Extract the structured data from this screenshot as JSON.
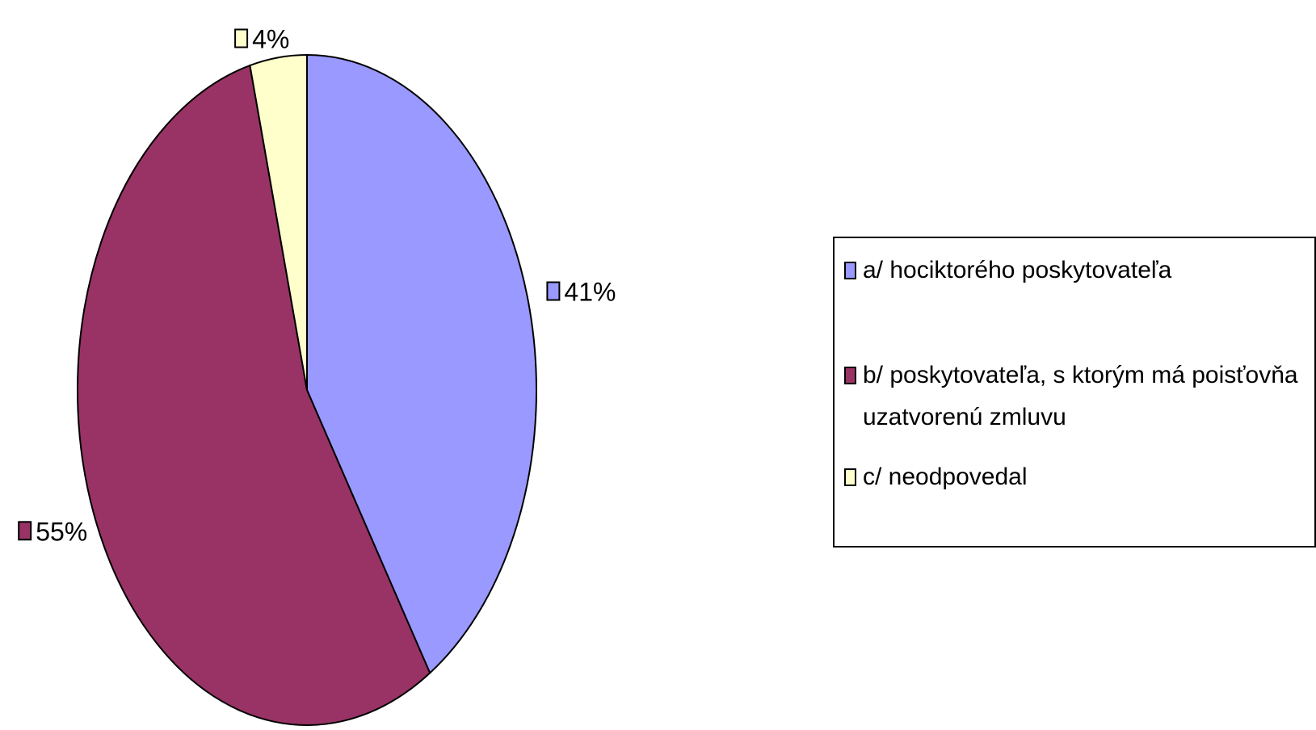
{
  "chart_data": {
    "type": "pie",
    "slices": [
      {
        "label": "a/ hociktorého poskytovateľa",
        "value": 41,
        "value_label": "41%",
        "color": "#9999ff"
      },
      {
        "label": "b/ poskytovateľa, s ktorým má poisťovňa uzatvorenú zmluvu",
        "value": 55,
        "value_label": "55%",
        "color": "#993366"
      },
      {
        "label": "c/ neodpovedal",
        "value": 4,
        "value_label": "4%",
        "color": "#ffffcc"
      }
    ],
    "legend_position": "right",
    "start": "top",
    "direction": "clockwise"
  }
}
